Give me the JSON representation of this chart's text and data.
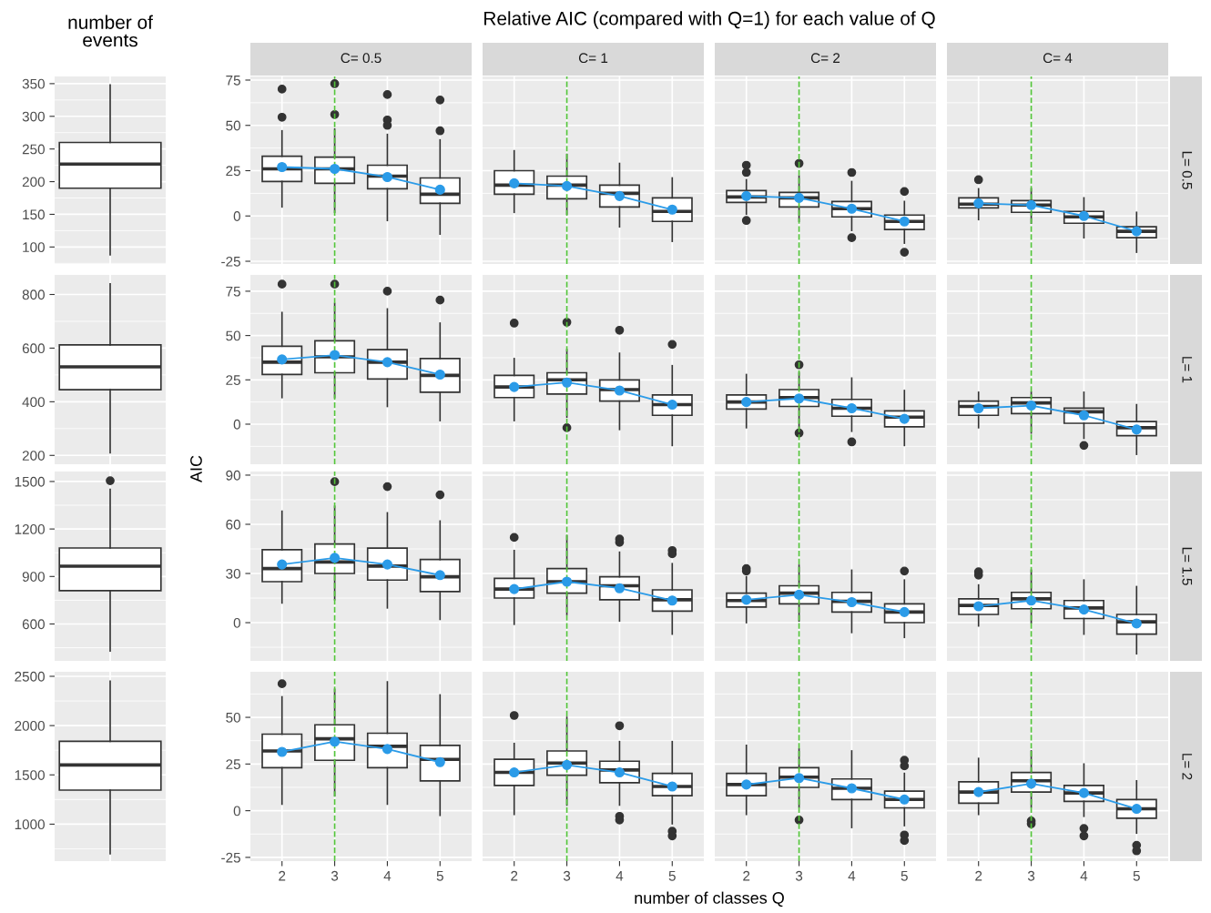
{
  "chart_data": [
    {
      "type": "box",
      "title": "number of\nevents",
      "categories": [
        null
      ],
      "boxes": [
        {
          "low": 88,
          "q1": 190,
          "median": 227,
          "q3": 260,
          "high": 348
        }
      ],
      "ylim": [
        74,
        361
      ],
      "yticks": [
        100,
        150,
        200,
        250,
        300,
        350
      ],
      "grid": true,
      "tick_labels": "y"
    },
    {
      "type": "box",
      "categories": [
        null
      ],
      "boxes": [
        {
          "low": 210,
          "q1": 445,
          "median": 530,
          "q3": 612,
          "high": 840
        }
      ],
      "ylim": [
        167,
        873
      ],
      "yticks": [
        200,
        400,
        600,
        800
      ],
      "grid": true,
      "tick_labels": "y"
    },
    {
      "type": "box",
      "categories": [
        null
      ],
      "boxes": [
        {
          "low": 430,
          "q1": 810,
          "median": 965,
          "q3": 1080,
          "high": 1450,
          "outliers": [
            1505
          ]
        }
      ],
      "ylim": [
        367,
        1563
      ],
      "yticks": [
        600,
        900,
        1200,
        1500
      ],
      "grid": true,
      "tick_labels": "y"
    },
    {
      "type": "box",
      "categories": [
        null
      ],
      "boxes": [
        {
          "low": 700,
          "q1": 1345,
          "median": 1600,
          "q3": 1840,
          "high": 2450
        }
      ],
      "ylim": [
        625,
        2546
      ],
      "yticks": [
        1000,
        1500,
        2000,
        2500
      ],
      "grid": true,
      "tick_labels": "y"
    },
    {
      "type": "box",
      "title": "C= 0.5",
      "categories": [
        "2",
        "3",
        "4",
        "5"
      ],
      "boxes": [
        {
          "low": 5,
          "q1": 19,
          "median": 26,
          "q3": 33,
          "high": 47,
          "outliers": [
            70,
            54.5
          ]
        },
        {
          "low": 2,
          "q1": 18,
          "median": 26,
          "q3": 32.5,
          "high": 48,
          "outliers": [
            73,
            56
          ]
        },
        {
          "low": -2.5,
          "q1": 15,
          "median": 22,
          "q3": 28,
          "high": 45,
          "outliers": [
            67,
            53,
            50
          ]
        },
        {
          "low": -10,
          "q1": 7,
          "median": 12,
          "q3": 21,
          "high": 42,
          "outliers": [
            64,
            47
          ]
        }
      ],
      "series": [
        {
          "type": "line",
          "color": "#2b9be8",
          "values": [
            27,
            26,
            21.5,
            14.5
          ]
        }
      ],
      "marker": "circle",
      "ylim": [
        -26.5,
        77
      ],
      "yticks": [
        -25,
        0,
        25,
        50,
        75
      ],
      "ref_lines": [
        {
          "axis": "x",
          "value": "3",
          "color": "#53c43a",
          "line_style": "dashed"
        }
      ],
      "grid": true,
      "tick_labels": "y"
    },
    {
      "type": "box",
      "subtitle": "Relative AIC (compared with Q=1) for each value of Q",
      "title": "C= 1",
      "categories": [
        "2",
        "3",
        "4",
        "5"
      ],
      "boxes": [
        {
          "low": 2,
          "q1": 12,
          "median": 17,
          "q3": 25,
          "high": 36
        },
        {
          "low": 1,
          "q1": 9.5,
          "median": 17,
          "q3": 22,
          "high": 34
        },
        {
          "low": -6,
          "q1": 5,
          "median": 12.5,
          "q3": 17,
          "high": 29
        },
        {
          "low": -14,
          "q1": -3,
          "median": 2.5,
          "q3": 10,
          "high": 21
        }
      ],
      "series": [
        {
          "type": "line",
          "color": "#2b9be8",
          "values": [
            18,
            16.5,
            11,
            3.5
          ]
        }
      ],
      "marker": "circle",
      "ylim": [
        -26.5,
        77
      ],
      "yticks": [
        -25,
        0,
        25,
        50,
        75
      ],
      "ref_lines": [
        {
          "axis": "x",
          "value": "3",
          "color": "#53c43a",
          "line_style": "dashed"
        }
      ],
      "grid": true,
      "tick_labels": false
    },
    {
      "type": "box",
      "title": "C= 2",
      "categories": [
        "2",
        "3",
        "4",
        "5"
      ],
      "boxes": [
        {
          "low": 1,
          "q1": 7.5,
          "median": 10.5,
          "q3": 14,
          "high": 20,
          "outliers": [
            28,
            24,
            -2.5
          ]
        },
        {
          "low": -3,
          "q1": 5,
          "median": 10,
          "q3": 13,
          "high": 22,
          "outliers": [
            29
          ]
        },
        {
          "low": -8,
          "q1": -0.5,
          "median": 4,
          "q3": 8,
          "high": 19,
          "outliers": [
            24,
            -12
          ]
        },
        {
          "low": -15,
          "q1": -7.5,
          "median": -3,
          "q3": 0.5,
          "high": 8,
          "outliers": [
            13.5,
            -20
          ]
        }
      ],
      "series": [
        {
          "type": "line",
          "color": "#2b9be8",
          "values": [
            11,
            10,
            4,
            -3
          ]
        }
      ],
      "marker": "circle",
      "ylim": [
        -26.5,
        77
      ],
      "yticks": [
        -25,
        0,
        25,
        50,
        75
      ],
      "ref_lines": [
        {
          "axis": "x",
          "value": "3",
          "color": "#53c43a",
          "line_style": "dashed"
        }
      ],
      "grid": true,
      "tick_labels": false
    },
    {
      "type": "box",
      "title": "C= 4",
      "y2label": "L= 0.5",
      "categories": [
        "2",
        "3",
        "4",
        "5"
      ],
      "boxes": [
        {
          "low": -2,
          "q1": 4.5,
          "median": 6.5,
          "q3": 10,
          "high": 15,
          "outliers": [
            20
          ]
        },
        {
          "low": -4,
          "q1": 2,
          "median": 6,
          "q3": 8.5,
          "high": 15
        },
        {
          "low": -12,
          "q1": -4,
          "median": -0.5,
          "q3": 2.5,
          "high": 10
        },
        {
          "low": -20,
          "q1": -12,
          "median": -8.5,
          "q3": -6,
          "high": 2
        }
      ],
      "series": [
        {
          "type": "line",
          "color": "#2b9be8",
          "values": [
            7,
            6,
            0,
            -8.5
          ]
        }
      ],
      "marker": "circle",
      "ylim": [
        -26.5,
        77
      ],
      "yticks": [
        -25,
        0,
        25,
        50,
        75
      ],
      "ref_lines": [
        {
          "axis": "x",
          "value": "3",
          "color": "#53c43a",
          "line_style": "dashed"
        }
      ],
      "grid": true,
      "tick_labels": false
    },
    {
      "type": "box",
      "categories": [
        "2",
        "3",
        "4",
        "5"
      ],
      "boxes": [
        {
          "low": 15,
          "q1": 28,
          "median": 35,
          "q3": 44,
          "high": 63,
          "outliers": [
            79
          ]
        },
        {
          "low": 15,
          "q1": 29,
          "median": 38,
          "q3": 47,
          "high": 68,
          "outliers": [
            79
          ]
        },
        {
          "low": 10,
          "q1": 25.5,
          "median": 35,
          "q3": 42,
          "high": 65,
          "outliers": [
            75
          ]
        },
        {
          "low": 2,
          "q1": 18,
          "median": 27.5,
          "q3": 37,
          "high": 57,
          "outliers": [
            70
          ]
        }
      ],
      "ylabel": "AIC",
      "series": [
        {
          "type": "line",
          "color": "#2b9be8",
          "values": [
            36.5,
            39,
            35,
            28
          ]
        }
      ],
      "marker": "circle",
      "ylim": [
        -22.6,
        84.2
      ],
      "yticks": [
        0,
        25,
        50,
        75
      ],
      "ref_lines": [
        {
          "axis": "x",
          "value": "3",
          "color": "#53c43a",
          "line_style": "dashed"
        }
      ],
      "grid": true,
      "tick_labels": "y"
    },
    {
      "type": "box",
      "categories": [
        "2",
        "3",
        "4",
        "5"
      ],
      "boxes": [
        {
          "low": 2,
          "q1": 15,
          "median": 21,
          "q3": 27.5,
          "high": 37,
          "outliers": [
            57
          ]
        },
        {
          "low": 4,
          "q1": 17,
          "median": 25,
          "q3": 29,
          "high": 42,
          "outliers": [
            57.5,
            -2
          ]
        },
        {
          "low": -3,
          "q1": 13,
          "median": 19.5,
          "q3": 25,
          "high": 40,
          "outliers": [
            53
          ]
        },
        {
          "low": -12,
          "q1": 5,
          "median": 11,
          "q3": 16.5,
          "high": 33,
          "outliers": [
            45
          ]
        }
      ],
      "series": [
        {
          "type": "line",
          "color": "#2b9be8",
          "values": [
            21,
            23.5,
            19,
            11
          ]
        }
      ],
      "marker": "circle",
      "ylim": [
        -22.6,
        84.2
      ],
      "yticks": [
        0,
        25,
        50,
        75
      ],
      "ref_lines": [
        {
          "axis": "x",
          "value": "3",
          "color": "#53c43a",
          "line_style": "dashed"
        }
      ],
      "grid": true,
      "tick_labels": false
    },
    {
      "type": "box",
      "categories": [
        "2",
        "3",
        "4",
        "5"
      ],
      "boxes": [
        {
          "low": -2,
          "q1": 8.5,
          "median": 12.5,
          "q3": 16.5,
          "high": 28
        },
        {
          "low": -2,
          "q1": 10,
          "median": 15,
          "q3": 19.5,
          "high": 29,
          "outliers": [
            33.5,
            -5
          ]
        },
        {
          "low": -4,
          "q1": 4.5,
          "median": 9,
          "q3": 14,
          "high": 26,
          "outliers": [
            -10
          ]
        },
        {
          "low": -12,
          "q1": -1.5,
          "median": 4,
          "q3": 7.5,
          "high": 19
        }
      ],
      "series": [
        {
          "type": "line",
          "color": "#2b9be8",
          "values": [
            12.5,
            14.5,
            9,
            3
          ]
        }
      ],
      "marker": "circle",
      "ylim": [
        -22.6,
        84.2
      ],
      "yticks": [
        0,
        25,
        50,
        75
      ],
      "ref_lines": [
        {
          "axis": "x",
          "value": "3",
          "color": "#53c43a",
          "line_style": "dashed"
        }
      ],
      "grid": true,
      "tick_labels": false
    },
    {
      "type": "box",
      "y2label": "L= 1",
      "categories": [
        "2",
        "3",
        "4",
        "5"
      ],
      "boxes": [
        {
          "low": -2,
          "q1": 5,
          "median": 10,
          "q3": 13,
          "high": 18
        },
        {
          "low": -5,
          "q1": 6,
          "median": 12,
          "q3": 15,
          "high": 18
        },
        {
          "low": -8,
          "q1": 0.5,
          "median": 7,
          "q3": 9,
          "high": 18,
          "outliers": [
            -12
          ]
        },
        {
          "low": -17,
          "q1": -6.5,
          "median": -2,
          "q3": 1.5,
          "high": 11
        }
      ],
      "series": [
        {
          "type": "line",
          "color": "#2b9be8",
          "values": [
            9,
            10.5,
            5,
            -3
          ]
        }
      ],
      "marker": "circle",
      "ylim": [
        -22.6,
        84.2
      ],
      "yticks": [
        0,
        25,
        50,
        75
      ],
      "ref_lines": [
        {
          "axis": "x",
          "value": "3",
          "color": "#53c43a",
          "line_style": "dashed"
        }
      ],
      "grid": true,
      "tick_labels": false
    },
    {
      "type": "box",
      "categories": [
        "2",
        "3",
        "4",
        "5"
      ],
      "boxes": [
        {
          "low": 12,
          "q1": 25,
          "median": 33,
          "q3": 44.5,
          "high": 68
        },
        {
          "low": 14,
          "q1": 30,
          "median": 37,
          "q3": 48,
          "high": 71,
          "outliers": [
            86
          ]
        },
        {
          "low": 9,
          "q1": 26,
          "median": 34.5,
          "q3": 45.5,
          "high": 67,
          "outliers": [
            83
          ]
        },
        {
          "low": 2,
          "q1": 19,
          "median": 28,
          "q3": 38.5,
          "high": 62,
          "outliers": [
            78
          ]
        }
      ],
      "series": [
        {
          "type": "line",
          "color": "#2b9be8",
          "values": [
            35.5,
            39.5,
            35.5,
            29
          ]
        }
      ],
      "marker": "circle",
      "ylim": [
        -23.3,
        92.2
      ],
      "yticks": [
        0,
        30,
        60,
        90
      ],
      "ref_lines": [
        {
          "axis": "x",
          "value": "3",
          "color": "#53c43a",
          "line_style": "dashed"
        }
      ],
      "grid": true,
      "tick_labels": "y"
    },
    {
      "type": "box",
      "categories": [
        "2",
        "3",
        "4",
        "5"
      ],
      "boxes": [
        {
          "low": -1,
          "q1": 15,
          "median": 20.5,
          "q3": 27,
          "high": 44,
          "outliers": [
            52
          ]
        },
        {
          "low": 5,
          "q1": 18,
          "median": 25,
          "q3": 33,
          "high": 53
        },
        {
          "low": 1,
          "q1": 14,
          "median": 22.5,
          "q3": 28,
          "high": 43,
          "outliers": [
            51,
            49
          ]
        },
        {
          "low": -7,
          "q1": 7,
          "median": 14,
          "q3": 20,
          "high": 36,
          "outliers": [
            44,
            42
          ]
        }
      ],
      "series": [
        {
          "type": "line",
          "color": "#2b9be8",
          "values": [
            20.5,
            25,
            21,
            13.5
          ]
        }
      ],
      "marker": "circle",
      "ylim": [
        -23.3,
        92.2
      ],
      "yticks": [
        0,
        30,
        60,
        90
      ],
      "ref_lines": [
        {
          "axis": "x",
          "value": "3",
          "color": "#53c43a",
          "line_style": "dashed"
        }
      ],
      "grid": true,
      "tick_labels": false
    },
    {
      "type": "box",
      "categories": [
        "2",
        "3",
        "4",
        "5"
      ],
      "boxes": [
        {
          "low": 0,
          "q1": 9.5,
          "median": 13.5,
          "q3": 18,
          "high": 28,
          "outliers": [
            33,
            31.5
          ]
        },
        {
          "low": 1,
          "q1": 11.5,
          "median": 18,
          "q3": 22.5,
          "high": 35
        },
        {
          "low": -6,
          "q1": 6.5,
          "median": 13,
          "q3": 18.5,
          "high": 32
        },
        {
          "low": -9,
          "q1": 0,
          "median": 6.5,
          "q3": 11.5,
          "high": 26,
          "outliers": [
            31.5
          ]
        }
      ],
      "series": [
        {
          "type": "line",
          "color": "#2b9be8",
          "values": [
            14,
            17,
            12.5,
            6.5
          ]
        }
      ],
      "marker": "circle",
      "ylim": [
        -23.3,
        92.2
      ],
      "yticks": [
        0,
        30,
        60,
        90
      ],
      "ref_lines": [
        {
          "axis": "x",
          "value": "3",
          "color": "#53c43a",
          "line_style": "dashed"
        }
      ],
      "grid": true,
      "tick_labels": false
    },
    {
      "type": "box",
      "y2label": "L= 1.5",
      "categories": [
        "2",
        "3",
        "4",
        "5"
      ],
      "boxes": [
        {
          "low": -2,
          "q1": 5,
          "median": 10.5,
          "q3": 14.5,
          "high": 23,
          "outliers": [
            31,
            29
          ]
        },
        {
          "low": 0,
          "q1": 8.5,
          "median": 14.5,
          "q3": 18.5,
          "high": 32
        },
        {
          "low": -7,
          "q1": 2.5,
          "median": 9,
          "q3": 13.5,
          "high": 26
        },
        {
          "low": -19,
          "q1": -7,
          "median": 0.5,
          "q3": 5,
          "high": 22
        }
      ],
      "series": [
        {
          "type": "line",
          "color": "#2b9be8",
          "values": [
            10,
            13.5,
            8,
            -0.5
          ]
        }
      ],
      "marker": "circle",
      "ylim": [
        -23.3,
        92.2
      ],
      "yticks": [
        0,
        30,
        60,
        90
      ],
      "ref_lines": [
        {
          "axis": "x",
          "value": "3",
          "color": "#53c43a",
          "line_style": "dashed"
        }
      ],
      "grid": true,
      "tick_labels": false
    },
    {
      "type": "box",
      "categories": [
        "2",
        "3",
        "4",
        "5"
      ],
      "boxes": [
        {
          "low": 3.5,
          "q1": 23,
          "median": 32,
          "q3": 41,
          "high": 61,
          "outliers": [
            68
          ]
        },
        {
          "low": 8,
          "q1": 27,
          "median": 38.5,
          "q3": 46,
          "high": 65
        },
        {
          "low": 3.5,
          "q1": 23,
          "median": 34.5,
          "q3": 41.5,
          "high": 69
        },
        {
          "low": -2.5,
          "q1": 16,
          "median": 27.5,
          "q3": 35,
          "high": 62
        }
      ],
      "series": [
        {
          "type": "line",
          "color": "#2b9be8",
          "values": [
            31.5,
            37,
            33,
            26
          ]
        }
      ],
      "marker": "circle",
      "ylim": [
        -27,
        74.4
      ],
      "yticks": [
        -25,
        0,
        25,
        50
      ],
      "ref_lines": [
        {
          "axis": "x",
          "value": "3",
          "color": "#53c43a",
          "line_style": "dashed"
        }
      ],
      "grid": true
    },
    {
      "type": "box",
      "categories": [
        "2",
        "3",
        "4",
        "5"
      ],
      "boxes": [
        {
          "low": -2,
          "q1": 13.5,
          "median": 20.5,
          "q3": 27.5,
          "high": 36,
          "outliers": [
            51
          ]
        },
        {
          "low": 3,
          "q1": 19,
          "median": 25.5,
          "q3": 32,
          "high": 50
        },
        {
          "low": 3,
          "q1": 15,
          "median": 21.8,
          "q3": 26.5,
          "high": 37,
          "outliers": [
            45.5,
            -3,
            -5
          ]
        },
        {
          "low": -7,
          "q1": 8,
          "median": 13,
          "q3": 20,
          "high": 37,
          "outliers": [
            -11,
            -13.5
          ]
        }
      ],
      "xlabel": "number of classes Q",
      "series": [
        {
          "type": "line",
          "color": "#2b9be8",
          "values": [
            20.5,
            24.5,
            20.5,
            13
          ]
        }
      ],
      "marker": "circle",
      "ylim": [
        -27,
        74.4
      ],
      "yticks": [
        -25,
        0,
        25,
        50
      ],
      "ref_lines": [
        {
          "axis": "x",
          "value": "3",
          "color": "#53c43a",
          "line_style": "dashed"
        }
      ],
      "grid": true,
      "tick_labels": "x"
    },
    {
      "type": "box",
      "categories": [
        "2",
        "3",
        "4",
        "5"
      ],
      "boxes": [
        {
          "low": -2,
          "q1": 8,
          "median": 14,
          "q3": 20,
          "high": 35
        },
        {
          "low": 2,
          "q1": 12.5,
          "median": 18,
          "q3": 23,
          "high": 33,
          "outliers": [
            -5
          ]
        },
        {
          "low": -9,
          "q1": 6,
          "median": 12,
          "q3": 17,
          "high": 32
        },
        {
          "low": -8,
          "q1": 1.5,
          "median": 6,
          "q3": 10.5,
          "high": 20,
          "outliers": [
            27,
            24,
            -13,
            -16
          ]
        }
      ],
      "series": [
        {
          "type": "line",
          "color": "#2b9be8",
          "values": [
            14,
            17.5,
            12,
            6
          ]
        }
      ],
      "marker": "circle",
      "ylim": [
        -27,
        74.4
      ],
      "yticks": [
        -25,
        0,
        25,
        50
      ],
      "ref_lines": [
        {
          "axis": "x",
          "value": "3",
          "color": "#53c43a",
          "line_style": "dashed"
        }
      ],
      "grid": true,
      "tick_labels": "x"
    },
    {
      "type": "box",
      "y2label": "L= 2",
      "categories": [
        "2",
        "3",
        "4",
        "5"
      ],
      "boxes": [
        {
          "low": -2,
          "q1": 4,
          "median": 10,
          "q3": 15.5,
          "high": 28
        },
        {
          "low": 2,
          "q1": 10,
          "median": 16,
          "q3": 20.5,
          "high": 32,
          "outliers": [
            -5.5,
            -7
          ]
        },
        {
          "low": -3,
          "q1": 5,
          "median": 9.5,
          "q3": 13.5,
          "high": 25,
          "outliers": [
            -9.5,
            -13.5
          ]
        },
        {
          "low": -12,
          "q1": -4,
          "median": 1,
          "q3": 6,
          "high": 16,
          "outliers": [
            -18.5,
            -21.5
          ]
        }
      ],
      "series": [
        {
          "type": "line",
          "color": "#2b9be8",
          "values": [
            10,
            14.5,
            9.5,
            1
          ]
        }
      ],
      "marker": "circle",
      "ylim": [
        -27,
        74.4
      ],
      "yticks": [
        -25,
        0,
        25,
        50
      ],
      "ref_lines": [
        {
          "axis": "x",
          "value": "3",
          "color": "#53c43a",
          "line_style": "dashed"
        }
      ],
      "grid": true,
      "tick_labels": "x"
    }
  ]
}
